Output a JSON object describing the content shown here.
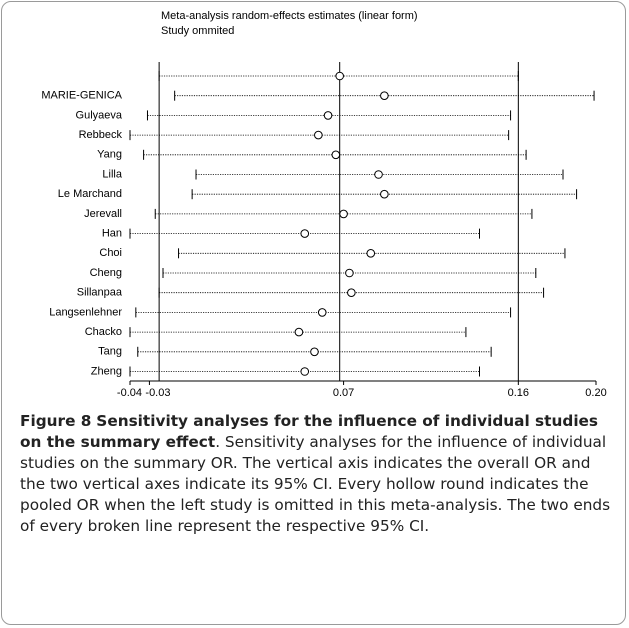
{
  "chart_data": {
    "type": "forest",
    "title": "Meta-analysis random-effects estimates (linear form)",
    "subtitle": "Study ommited",
    "categories": [
      null,
      "MARIE-GENICA",
      "Gulyaeva",
      "Rebbeck",
      "Yang",
      "Lilla",
      "Le Marchand",
      "Jerevall",
      "Han",
      "Choi",
      "Cheng",
      "Sillanpaa",
      "Langsenlehner",
      "Chacko",
      "Tang",
      "Zheng"
    ],
    "estimates": [
      0.068,
      0.091,
      0.062,
      0.057,
      0.066,
      0.088,
      0.091,
      0.07,
      0.05,
      0.084,
      0.073,
      0.074,
      0.059,
      0.047,
      0.055,
      0.05
    ],
    "lower": [
      -0.025,
      -0.017,
      -0.031,
      -0.04,
      -0.033,
      -0.006,
      -0.008,
      -0.027,
      -0.04,
      -0.015,
      -0.023,
      -0.025,
      -0.037,
      -0.04,
      -0.036,
      -0.04
    ],
    "upper": [
      0.16,
      0.199,
      0.156,
      0.155,
      0.164,
      0.183,
      0.19,
      0.167,
      0.14,
      0.184,
      0.169,
      0.173,
      0.156,
      0.133,
      0.146,
      0.14
    ],
    "xlim": [
      -0.04,
      0.2
    ],
    "xticks": [
      -0.04,
      -0.03,
      0.07,
      0.16,
      {
        "value": 0.2,
        "label": "0.20"
      }
    ]
  },
  "caption": {
    "label": "Figure 8",
    "title": "Sensitivity analyses for the influence of individual studies on the summary effect",
    "text": "Sensitivity analyses for the influence of individual studies on the summary OR. The vertical axis indicates the overall OR and the two vertical axes indicate its 95% CI. Every hollow round indicates the pooled OR when the left study is omitted in this meta-analysis. The two ends of every broken line represent the respective 95% CI."
  }
}
